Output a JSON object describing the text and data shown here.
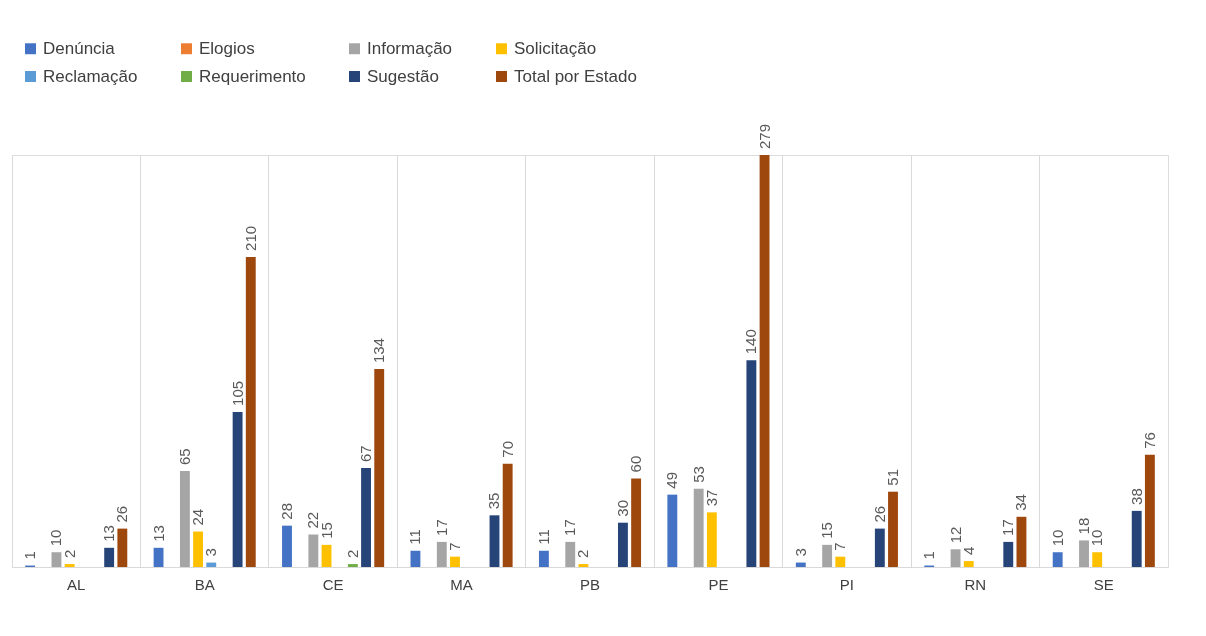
{
  "chart_data": {
    "type": "bar",
    "categories": [
      "AL",
      "BA",
      "CE",
      "MA",
      "PB",
      "PE",
      "PI",
      "RN",
      "SE"
    ],
    "series": [
      {
        "name": "Denúncia",
        "color": "#4472c4",
        "values": [
          1,
          13,
          28,
          11,
          11,
          49,
          3,
          1,
          10
        ]
      },
      {
        "name": "Elogios",
        "color": "#ed7d31",
        "values": [
          null,
          null,
          null,
          null,
          null,
          null,
          null,
          null,
          null
        ]
      },
      {
        "name": "Informação",
        "color": "#a5a5a5",
        "values": [
          10,
          65,
          22,
          17,
          17,
          53,
          15,
          12,
          18
        ]
      },
      {
        "name": "Solicitação",
        "color": "#ffc000",
        "values": [
          2,
          24,
          15,
          7,
          2,
          37,
          7,
          4,
          10
        ]
      },
      {
        "name": "Reclamação",
        "color": "#5b9bd5",
        "values": [
          null,
          3,
          null,
          null,
          null,
          null,
          null,
          null,
          null
        ]
      },
      {
        "name": "Requerimento",
        "color": "#70ad47",
        "values": [
          null,
          null,
          2,
          null,
          null,
          null,
          null,
          null,
          null
        ]
      },
      {
        "name": "Sugestão",
        "color": "#264478",
        "values": [
          13,
          105,
          67,
          35,
          30,
          140,
          26,
          17,
          38
        ]
      },
      {
        "name": "Total por Estado",
        "color": "#9e480e",
        "values": [
          26,
          210,
          134,
          70,
          60,
          279,
          51,
          34,
          76
        ]
      }
    ],
    "data_labels": true,
    "grid": "x",
    "legend": "top"
  }
}
